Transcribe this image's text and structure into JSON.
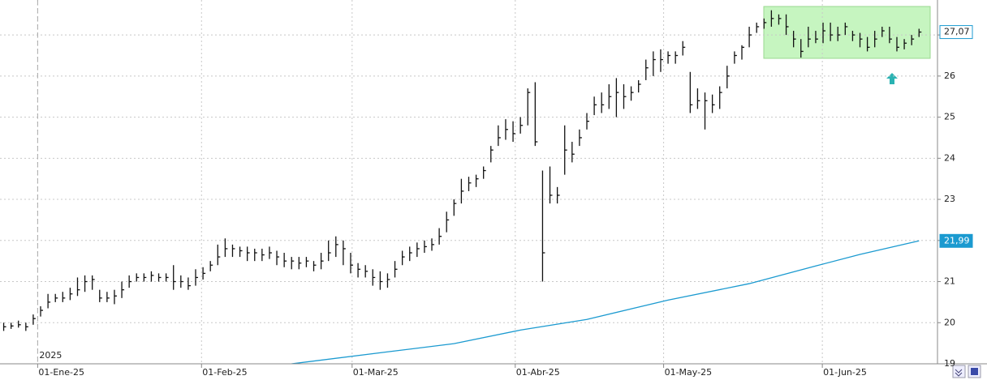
{
  "chart_data": {
    "type": "ohlc",
    "color": "#111111",
    "xlim": [
      -0.5,
      126.5
    ],
    "xticks": [
      {
        "value": 4.6,
        "label": "01-Ene-25"
      },
      {
        "value": 26.8,
        "label": "01-Feb-25"
      },
      {
        "value": 47.2,
        "label": "01-Mar-25"
      },
      {
        "value": 69.3,
        "label": "01-Abr-25"
      },
      {
        "value": 89.4,
        "label": "01-May-25"
      },
      {
        "value": 110.9,
        "label": "01-Jun-25"
      }
    ],
    "year_label": {
      "value": 4.6,
      "label": "2025"
    },
    "ylim": [
      19,
      27.85
    ],
    "yticks": [
      19,
      20,
      21,
      22,
      23,
      24,
      25,
      26,
      27
    ],
    "grid": true,
    "high": [
      20.0,
      20.0,
      20.05,
      20.0,
      20.2,
      20.4,
      20.7,
      20.7,
      20.75,
      20.85,
      21.1,
      21.15,
      21.15,
      20.8,
      20.75,
      20.8,
      21.0,
      21.15,
      21.2,
      21.2,
      21.25,
      21.2,
      21.2,
      21.4,
      21.15,
      21.1,
      21.3,
      21.35,
      21.5,
      21.9,
      22.05,
      21.9,
      21.85,
      21.85,
      21.8,
      21.8,
      21.85,
      21.75,
      21.7,
      21.6,
      21.6,
      21.6,
      21.5,
      21.7,
      22.0,
      22.1,
      22.0,
      21.7,
      21.45,
      21.4,
      21.3,
      21.25,
      21.2,
      21.5,
      21.75,
      21.85,
      21.95,
      22.0,
      22.05,
      22.3,
      22.7,
      23.0,
      23.5,
      23.55,
      23.6,
      23.8,
      24.3,
      24.8,
      24.95,
      24.9,
      25.0,
      25.7,
      25.85,
      23.7,
      23.8,
      23.3,
      24.8,
      24.4,
      24.7,
      25.1,
      25.5,
      25.6,
      25.8,
      25.95,
      25.8,
      25.75,
      25.9,
      26.4,
      26.6,
      26.65,
      26.6,
      26.6,
      26.85,
      26.1,
      25.7,
      25.6,
      25.55,
      25.75,
      26.25,
      26.6,
      26.75,
      27.2,
      27.3,
      27.4,
      27.6,
      27.5,
      27.5,
      27.1,
      26.9,
      27.2,
      27.1,
      27.3,
      27.3,
      27.2,
      27.3,
      27.1,
      27.05,
      26.95,
      27.1,
      27.2,
      27.2,
      26.95,
      26.9,
      27.0,
      27.15
    ],
    "low": [
      19.8,
      19.85,
      19.88,
      19.8,
      19.95,
      20.15,
      20.35,
      20.5,
      20.5,
      20.55,
      20.65,
      20.75,
      20.8,
      20.5,
      20.5,
      20.45,
      20.6,
      20.85,
      21.0,
      21.0,
      21.0,
      21.0,
      21.0,
      20.8,
      20.85,
      20.8,
      20.9,
      21.05,
      21.25,
      21.4,
      21.6,
      21.6,
      21.6,
      21.5,
      21.5,
      21.5,
      21.55,
      21.4,
      21.35,
      21.3,
      21.3,
      21.35,
      21.25,
      21.3,
      21.5,
      21.6,
      21.4,
      21.2,
      21.1,
      21.1,
      20.9,
      20.8,
      20.85,
      21.1,
      21.4,
      21.5,
      21.6,
      21.7,
      21.75,
      21.9,
      22.2,
      22.6,
      22.9,
      23.2,
      23.3,
      23.5,
      23.9,
      24.3,
      24.45,
      24.4,
      24.6,
      24.8,
      24.3,
      21.0,
      22.9,
      22.9,
      23.6,
      23.9,
      24.3,
      24.7,
      25.05,
      25.1,
      25.2,
      25.0,
      25.2,
      25.4,
      25.6,
      25.9,
      26.0,
      26.1,
      26.3,
      26.3,
      26.5,
      25.1,
      25.2,
      24.7,
      25.1,
      25.2,
      25.7,
      26.3,
      26.4,
      26.7,
      27.05,
      27.15,
      27.2,
      27.25,
      27.0,
      26.7,
      26.45,
      26.7,
      26.8,
      26.8,
      26.85,
      26.85,
      27.0,
      26.85,
      26.7,
      26.6,
      26.7,
      26.95,
      26.8,
      26.6,
      26.65,
      26.75,
      26.95
    ],
    "close": [
      19.9,
      19.92,
      19.95,
      19.9,
      20.1,
      20.3,
      20.5,
      20.6,
      20.6,
      20.7,
      20.8,
      21.0,
      21.05,
      20.6,
      20.6,
      20.65,
      20.8,
      21.0,
      21.1,
      21.1,
      21.15,
      21.1,
      21.1,
      21.0,
      21.0,
      20.9,
      21.1,
      21.2,
      21.4,
      21.6,
      21.8,
      21.8,
      21.75,
      21.7,
      21.7,
      21.65,
      21.7,
      21.6,
      21.5,
      21.5,
      21.45,
      21.5,
      21.4,
      21.5,
      21.7,
      21.9,
      21.8,
      21.4,
      21.3,
      21.25,
      21.1,
      21.0,
      21.05,
      21.3,
      21.6,
      21.7,
      21.8,
      21.85,
      21.9,
      22.1,
      22.5,
      22.9,
      23.2,
      23.4,
      23.5,
      23.7,
      24.2,
      24.5,
      24.7,
      24.6,
      24.8,
      25.6,
      24.4,
      21.7,
      23.1,
      23.1,
      24.2,
      24.1,
      24.5,
      24.9,
      25.3,
      25.3,
      25.5,
      25.6,
      25.5,
      25.6,
      25.8,
      26.2,
      26.4,
      26.4,
      26.5,
      26.5,
      26.7,
      25.3,
      25.4,
      25.4,
      25.3,
      25.6,
      26.0,
      26.5,
      26.7,
      27.0,
      27.2,
      27.3,
      27.4,
      27.4,
      27.2,
      26.9,
      26.6,
      26.9,
      26.9,
      27.1,
      27.0,
      27.0,
      27.2,
      27.0,
      26.9,
      26.7,
      26.9,
      27.1,
      26.9,
      26.7,
      26.8,
      26.9,
      27.07
    ],
    "moving_average": {
      "color": "#1b9ad0",
      "x": [
        39,
        52,
        61,
        70,
        79,
        90,
        101,
        110,
        116,
        124
      ],
      "values": [
        19.0,
        19.29,
        19.49,
        19.82,
        20.08,
        20.55,
        20.95,
        21.38,
        21.66,
        21.99
      ]
    },
    "price_labels": [
      {
        "value": 27.07,
        "label": "27,07",
        "color": "#ffffff",
        "text_color": "#222222"
      },
      {
        "value": 21.99,
        "label": "21,99",
        "color": "#1b9ad0",
        "text_color": "#ffffff"
      }
    ]
  }
}
